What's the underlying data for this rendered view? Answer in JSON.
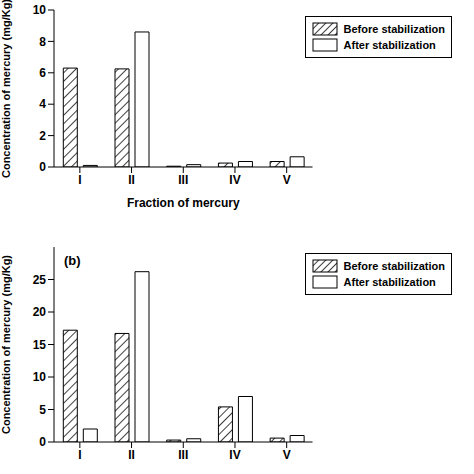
{
  "chart_data": [
    {
      "type": "bar",
      "x_label": "Fraction of mercury",
      "y_label": "Concentration of mercury (mg/Kg)",
      "categories": [
        "I",
        "II",
        "III",
        "IV",
        "V"
      ],
      "series": [
        {
          "name": "Before stabilization",
          "color": "#000000",
          "values": [
            6.3,
            6.25,
            0.05,
            0.25,
            0.35
          ]
        },
        {
          "name": "After stabilization",
          "color": "#ffffff",
          "values": [
            0.1,
            8.6,
            0.15,
            0.35,
            0.65
          ]
        }
      ],
      "ylim": [
        0,
        10
      ],
      "yticks": [
        0,
        2,
        4,
        6,
        8,
        10
      ],
      "legend": "upper right",
      "grid": false
    },
    {
      "type": "bar",
      "title": "(b)",
      "y_label": "Concentration of mercury (mg/Kg)",
      "categories": [
        "I",
        "II",
        "III",
        "IV",
        "V"
      ],
      "series": [
        {
          "name": "Before stabilization",
          "color": "#000000",
          "values": [
            17.2,
            16.7,
            0.3,
            5.4,
            0.6
          ]
        },
        {
          "name": "After stabilization",
          "color": "#ffffff",
          "values": [
            2.0,
            26.2,
            0.5,
            7.0,
            1.0
          ]
        }
      ],
      "ylim": [
        0,
        30
      ],
      "yticks": [
        0,
        5,
        10,
        15,
        20,
        25
      ],
      "legend": "upper right",
      "grid": false
    }
  ]
}
